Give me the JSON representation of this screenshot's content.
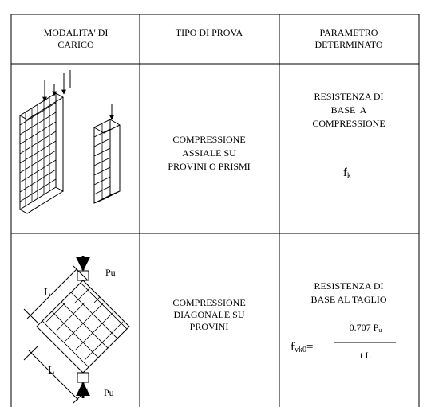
{
  "table": {
    "header": [
      [
        "MODALITA' DI",
        "CARICO"
      ],
      [
        "TIPO DI PROVA"
      ],
      [
        "PARAMETRO",
        "DETERMINATO"
      ]
    ],
    "rows": [
      {
        "test": [
          "COMPRESSIONE",
          "ASSIALE SU",
          "PROVINI O PRISMI"
        ],
        "parameter": [
          "RESISTENZA DI",
          "BASE  A",
          "COMPRESSIONE"
        ],
        "formula": {
          "symbol": "f",
          "sub": "k"
        }
      },
      {
        "loading_labels": [
          "Pu",
          "L",
          "L",
          "Pu"
        ],
        "test": [
          "COMPRESSIONE",
          "DIAGONALE SU",
          "PROVINI"
        ],
        "parameter": [
          "RESISTENZA DI",
          "BASE AL TAGLIO"
        ],
        "formula": {
          "symbol": "f",
          "sub": "vk0",
          "equals": "=",
          "numerator": "0.707 P",
          "numerator_sub": "u",
          "denominator": "t L"
        }
      }
    ]
  }
}
